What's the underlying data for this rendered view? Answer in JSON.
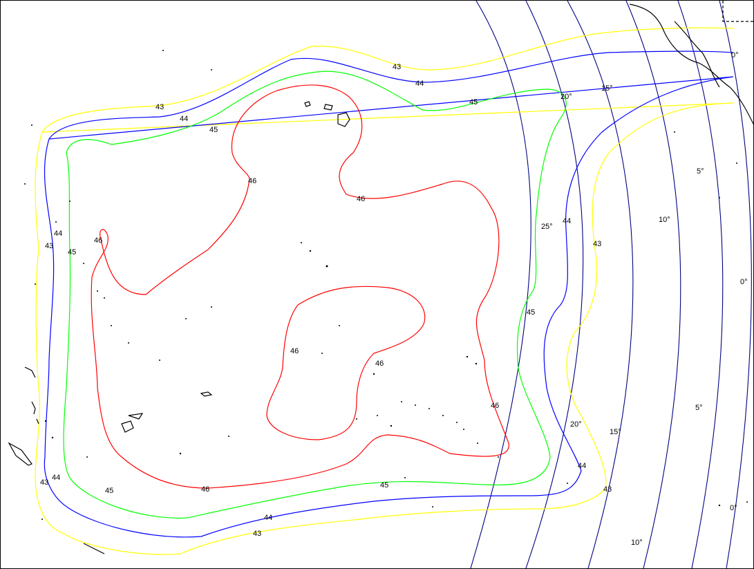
{
  "contours": [
    {
      "value": 43,
      "color": "#ffff00",
      "labels": [
        "43",
        "43",
        "43",
        "43",
        "43",
        "43"
      ]
    },
    {
      "value": 44,
      "color": "#0000ff",
      "labels": [
        "44",
        "44",
        "44",
        "44",
        "44",
        "44"
      ]
    },
    {
      "value": 45,
      "color": "#00ff00",
      "labels": [
        "45",
        "45",
        "45",
        "45",
        "45",
        "45",
        "45"
      ]
    },
    {
      "value": 46,
      "color": "#ff0000",
      "labels": [
        "46",
        "46",
        "46",
        "46",
        "46",
        "46",
        "46"
      ]
    }
  ],
  "elevation_arcs": {
    "color": "#000080",
    "labels": [
      "20°",
      "15°",
      "25°",
      "10°",
      "5°",
      "0°",
      "0°",
      "20°",
      "15°",
      "10°",
      "5°",
      "0°"
    ]
  },
  "coastline_color": "#000000"
}
